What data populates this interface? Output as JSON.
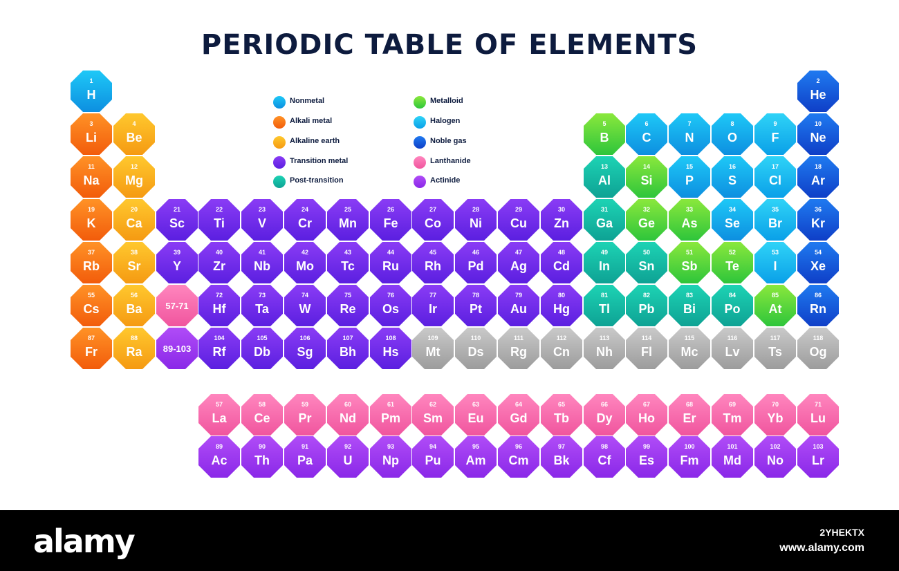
{
  "title": "PERIODIC TABLE OF ELEMENTS",
  "categories": {
    "nonmetal": {
      "label": "Nonmetal",
      "from": "#1ec8f7",
      "to": "#0d8fe0"
    },
    "alkali": {
      "label": "Alkali metal",
      "from": "#ff9226",
      "to": "#f25c0b"
    },
    "alkaline": {
      "label": "Alkaline earth",
      "from": "#ffc82e",
      "to": "#f59a12"
    },
    "transition": {
      "label": "Transition metal",
      "from": "#8a3cf5",
      "to": "#5b1fe0"
    },
    "post": {
      "label": "Post-transition",
      "from": "#1dd3b4",
      "to": "#0ea294"
    },
    "metalloid": {
      "label": "Metalloid",
      "from": "#8ae83c",
      "to": "#2ec53b"
    },
    "halogen": {
      "label": "Halogen",
      "from": "#2fd3f7",
      "to": "#0aa0e8"
    },
    "noble": {
      "label": "Noble gas",
      "from": "#1f7af0",
      "to": "#0f3fc7"
    },
    "lanthanide": {
      "label": "Lanthanide",
      "from": "#ff86be",
      "to": "#f0559e"
    },
    "actinide": {
      "label": "Actinide",
      "from": "#b04cf7",
      "to": "#8a28e8"
    },
    "unknown": {
      "label": "",
      "from": "#c9c9c9",
      "to": "#9c9c9c"
    }
  },
  "legend": {
    "col1": [
      "nonmetal",
      "alkali",
      "alkaline",
      "transition",
      "post"
    ],
    "col2": [
      "metalloid",
      "halogen",
      "noble",
      "lanthanide",
      "actinide"
    ]
  },
  "elements": [
    {
      "n": "1",
      "s": "H",
      "row": 1,
      "col": 1,
      "c": "nonmetal"
    },
    {
      "n": "2",
      "s": "He",
      "row": 1,
      "col": 18,
      "c": "noble"
    },
    {
      "n": "3",
      "s": "Li",
      "row": 2,
      "col": 1,
      "c": "alkali"
    },
    {
      "n": "4",
      "s": "Be",
      "row": 2,
      "col": 2,
      "c": "alkaline"
    },
    {
      "n": "5",
      "s": "B",
      "row": 2,
      "col": 13,
      "c": "metalloid"
    },
    {
      "n": "6",
      "s": "C",
      "row": 2,
      "col": 14,
      "c": "nonmetal"
    },
    {
      "n": "7",
      "s": "N",
      "row": 2,
      "col": 15,
      "c": "nonmetal"
    },
    {
      "n": "8",
      "s": "O",
      "row": 2,
      "col": 16,
      "c": "nonmetal"
    },
    {
      "n": "9",
      "s": "F",
      "row": 2,
      "col": 17,
      "c": "halogen"
    },
    {
      "n": "10",
      "s": "Ne",
      "row": 2,
      "col": 18,
      "c": "noble"
    },
    {
      "n": "11",
      "s": "Na",
      "row": 3,
      "col": 1,
      "c": "alkali"
    },
    {
      "n": "12",
      "s": "Mg",
      "row": 3,
      "col": 2,
      "c": "alkaline"
    },
    {
      "n": "13",
      "s": "Al",
      "row": 3,
      "col": 13,
      "c": "post"
    },
    {
      "n": "14",
      "s": "Si",
      "row": 3,
      "col": 14,
      "c": "metalloid"
    },
    {
      "n": "15",
      "s": "P",
      "row": 3,
      "col": 15,
      "c": "nonmetal"
    },
    {
      "n": "16",
      "s": "S",
      "row": 3,
      "col": 16,
      "c": "nonmetal"
    },
    {
      "n": "17",
      "s": "Cl",
      "row": 3,
      "col": 17,
      "c": "halogen"
    },
    {
      "n": "18",
      "s": "Ar",
      "row": 3,
      "col": 18,
      "c": "noble"
    },
    {
      "n": "19",
      "s": "K",
      "row": 4,
      "col": 1,
      "c": "alkali"
    },
    {
      "n": "20",
      "s": "Ca",
      "row": 4,
      "col": 2,
      "c": "alkaline"
    },
    {
      "n": "21",
      "s": "Sc",
      "row": 4,
      "col": 3,
      "c": "transition"
    },
    {
      "n": "22",
      "s": "Ti",
      "row": 4,
      "col": 4,
      "c": "transition"
    },
    {
      "n": "23",
      "s": "V",
      "row": 4,
      "col": 5,
      "c": "transition"
    },
    {
      "n": "24",
      "s": "Cr",
      "row": 4,
      "col": 6,
      "c": "transition"
    },
    {
      "n": "25",
      "s": "Mn",
      "row": 4,
      "col": 7,
      "c": "transition"
    },
    {
      "n": "26",
      "s": "Fe",
      "row": 4,
      "col": 8,
      "c": "transition"
    },
    {
      "n": "27",
      "s": "Co",
      "row": 4,
      "col": 9,
      "c": "transition"
    },
    {
      "n": "28",
      "s": "Ni",
      "row": 4,
      "col": 10,
      "c": "transition"
    },
    {
      "n": "29",
      "s": "Cu",
      "row": 4,
      "col": 11,
      "c": "transition"
    },
    {
      "n": "30",
      "s": "Zn",
      "row": 4,
      "col": 12,
      "c": "transition"
    },
    {
      "n": "31",
      "s": "Ga",
      "row": 4,
      "col": 13,
      "c": "post"
    },
    {
      "n": "32",
      "s": "Ge",
      "row": 4,
      "col": 14,
      "c": "metalloid"
    },
    {
      "n": "33",
      "s": "As",
      "row": 4,
      "col": 15,
      "c": "metalloid"
    },
    {
      "n": "34",
      "s": "Se",
      "row": 4,
      "col": 16,
      "c": "nonmetal"
    },
    {
      "n": "35",
      "s": "Br",
      "row": 4,
      "col": 17,
      "c": "halogen"
    },
    {
      "n": "36",
      "s": "Kr",
      "row": 4,
      "col": 18,
      "c": "noble"
    },
    {
      "n": "37",
      "s": "Rb",
      "row": 5,
      "col": 1,
      "c": "alkali"
    },
    {
      "n": "38",
      "s": "Sr",
      "row": 5,
      "col": 2,
      "c": "alkaline"
    },
    {
      "n": "39",
      "s": "Y",
      "row": 5,
      "col": 3,
      "c": "transition"
    },
    {
      "n": "40",
      "s": "Zr",
      "row": 5,
      "col": 4,
      "c": "transition"
    },
    {
      "n": "41",
      "s": "Nb",
      "row": 5,
      "col": 5,
      "c": "transition"
    },
    {
      "n": "42",
      "s": "Mo",
      "row": 5,
      "col": 6,
      "c": "transition"
    },
    {
      "n": "43",
      "s": "Tc",
      "row": 5,
      "col": 7,
      "c": "transition"
    },
    {
      "n": "44",
      "s": "Ru",
      "row": 5,
      "col": 8,
      "c": "transition"
    },
    {
      "n": "45",
      "s": "Rh",
      "row": 5,
      "col": 9,
      "c": "transition"
    },
    {
      "n": "46",
      "s": "Pd",
      "row": 5,
      "col": 10,
      "c": "transition"
    },
    {
      "n": "47",
      "s": "Ag",
      "row": 5,
      "col": 11,
      "c": "transition"
    },
    {
      "n": "48",
      "s": "Cd",
      "row": 5,
      "col": 12,
      "c": "transition"
    },
    {
      "n": "49",
      "s": "In",
      "row": 5,
      "col": 13,
      "c": "post"
    },
    {
      "n": "50",
      "s": "Sn",
      "row": 5,
      "col": 14,
      "c": "post"
    },
    {
      "n": "51",
      "s": "Sb",
      "row": 5,
      "col": 15,
      "c": "metalloid"
    },
    {
      "n": "52",
      "s": "Te",
      "row": 5,
      "col": 16,
      "c": "metalloid"
    },
    {
      "n": "53",
      "s": "I",
      "row": 5,
      "col": 17,
      "c": "halogen"
    },
    {
      "n": "54",
      "s": "Xe",
      "row": 5,
      "col": 18,
      "c": "noble"
    },
    {
      "n": "55",
      "s": "Cs",
      "row": 6,
      "col": 1,
      "c": "alkali"
    },
    {
      "n": "56",
      "s": "Ba",
      "row": 6,
      "col": 2,
      "c": "alkaline"
    },
    {
      "n": "",
      "s": "57-71",
      "row": 6,
      "col": 3,
      "c": "lanthanide",
      "range": true
    },
    {
      "n": "72",
      "s": "Hf",
      "row": 6,
      "col": 4,
      "c": "transition"
    },
    {
      "n": "73",
      "s": "Ta",
      "row": 6,
      "col": 5,
      "c": "transition"
    },
    {
      "n": "74",
      "s": "W",
      "row": 6,
      "col": 6,
      "c": "transition"
    },
    {
      "n": "75",
      "s": "Re",
      "row": 6,
      "col": 7,
      "c": "transition"
    },
    {
      "n": "76",
      "s": "Os",
      "row": 6,
      "col": 8,
      "c": "transition"
    },
    {
      "n": "77",
      "s": "Ir",
      "row": 6,
      "col": 9,
      "c": "transition"
    },
    {
      "n": "78",
      "s": "Pt",
      "row": 6,
      "col": 10,
      "c": "transition"
    },
    {
      "n": "79",
      "s": "Au",
      "row": 6,
      "col": 11,
      "c": "transition"
    },
    {
      "n": "80",
      "s": "Hg",
      "row": 6,
      "col": 12,
      "c": "transition"
    },
    {
      "n": "81",
      "s": "Tl",
      "row": 6,
      "col": 13,
      "c": "post"
    },
    {
      "n": "82",
      "s": "Pb",
      "row": 6,
      "col": 14,
      "c": "post"
    },
    {
      "n": "83",
      "s": "Bi",
      "row": 6,
      "col": 15,
      "c": "post"
    },
    {
      "n": "84",
      "s": "Po",
      "row": 6,
      "col": 16,
      "c": "post"
    },
    {
      "n": "85",
      "s": "At",
      "row": 6,
      "col": 17,
      "c": "metalloid"
    },
    {
      "n": "86",
      "s": "Rn",
      "row": 6,
      "col": 18,
      "c": "noble"
    },
    {
      "n": "87",
      "s": "Fr",
      "row": 7,
      "col": 1,
      "c": "alkali"
    },
    {
      "n": "88",
      "s": "Ra",
      "row": 7,
      "col": 2,
      "c": "alkaline"
    },
    {
      "n": "",
      "s": "89-103",
      "row": 7,
      "col": 3,
      "c": "actinide",
      "range": true
    },
    {
      "n": "104",
      "s": "Rf",
      "row": 7,
      "col": 4,
      "c": "transition"
    },
    {
      "n": "105",
      "s": "Db",
      "row": 7,
      "col": 5,
      "c": "transition"
    },
    {
      "n": "106",
      "s": "Sg",
      "row": 7,
      "col": 6,
      "c": "transition"
    },
    {
      "n": "107",
      "s": "Bh",
      "row": 7,
      "col": 7,
      "c": "transition"
    },
    {
      "n": "108",
      "s": "Hs",
      "row": 7,
      "col": 8,
      "c": "transition"
    },
    {
      "n": "109",
      "s": "Mt",
      "row": 7,
      "col": 9,
      "c": "unknown"
    },
    {
      "n": "110",
      "s": "Ds",
      "row": 7,
      "col": 10,
      "c": "unknown"
    },
    {
      "n": "111",
      "s": "Rg",
      "row": 7,
      "col": 11,
      "c": "unknown"
    },
    {
      "n": "112",
      "s": "Cn",
      "row": 7,
      "col": 12,
      "c": "unknown"
    },
    {
      "n": "113",
      "s": "Nh",
      "row": 7,
      "col": 13,
      "c": "unknown"
    },
    {
      "n": "114",
      "s": "Fl",
      "row": 7,
      "col": 14,
      "c": "unknown"
    },
    {
      "n": "115",
      "s": "Mc",
      "row": 7,
      "col": 15,
      "c": "unknown"
    },
    {
      "n": "116",
      "s": "Lv",
      "row": 7,
      "col": 16,
      "c": "unknown"
    },
    {
      "n": "117",
      "s": "Ts",
      "row": 7,
      "col": 17,
      "c": "unknown"
    },
    {
      "n": "118",
      "s": "Og",
      "row": 7,
      "col": 18,
      "c": "unknown"
    },
    {
      "n": "57",
      "s": "La",
      "row": 8,
      "col": 4,
      "c": "lanthanide"
    },
    {
      "n": "58",
      "s": "Ce",
      "row": 8,
      "col": 5,
      "c": "lanthanide"
    },
    {
      "n": "59",
      "s": "Pr",
      "row": 8,
      "col": 6,
      "c": "lanthanide"
    },
    {
      "n": "60",
      "s": "Nd",
      "row": 8,
      "col": 7,
      "c": "lanthanide"
    },
    {
      "n": "61",
      "s": "Pm",
      "row": 8,
      "col": 8,
      "c": "lanthanide"
    },
    {
      "n": "62",
      "s": "Sm",
      "row": 8,
      "col": 9,
      "c": "lanthanide"
    },
    {
      "n": "63",
      "s": "Eu",
      "row": 8,
      "col": 10,
      "c": "lanthanide"
    },
    {
      "n": "64",
      "s": "Gd",
      "row": 8,
      "col": 11,
      "c": "lanthanide"
    },
    {
      "n": "65",
      "s": "Tb",
      "row": 8,
      "col": 12,
      "c": "lanthanide"
    },
    {
      "n": "66",
      "s": "Dy",
      "row": 8,
      "col": 13,
      "c": "lanthanide"
    },
    {
      "n": "67",
      "s": "Ho",
      "row": 8,
      "col": 14,
      "c": "lanthanide"
    },
    {
      "n": "68",
      "s": "Er",
      "row": 8,
      "col": 15,
      "c": "lanthanide"
    },
    {
      "n": "69",
      "s": "Tm",
      "row": 8,
      "col": 16,
      "c": "lanthanide"
    },
    {
      "n": "70",
      "s": "Yb",
      "row": 8,
      "col": 17,
      "c": "lanthanide"
    },
    {
      "n": "71",
      "s": "Lu",
      "row": 8,
      "col": 18,
      "c": "lanthanide"
    },
    {
      "n": "89",
      "s": "Ac",
      "row": 9,
      "col": 4,
      "c": "actinide"
    },
    {
      "n": "90",
      "s": "Th",
      "row": 9,
      "col": 5,
      "c": "actinide"
    },
    {
      "n": "91",
      "s": "Pa",
      "row": 9,
      "col": 6,
      "c": "actinide"
    },
    {
      "n": "92",
      "s": "U",
      "row": 9,
      "col": 7,
      "c": "actinide"
    },
    {
      "n": "93",
      "s": "Np",
      "row": 9,
      "col": 8,
      "c": "actinide"
    },
    {
      "n": "94",
      "s": "Pu",
      "row": 9,
      "col": 9,
      "c": "actinide"
    },
    {
      "n": "95",
      "s": "Am",
      "row": 9,
      "col": 10,
      "c": "actinide"
    },
    {
      "n": "96",
      "s": "Cm",
      "row": 9,
      "col": 11,
      "c": "actinide"
    },
    {
      "n": "97",
      "s": "Bk",
      "row": 9,
      "col": 12,
      "c": "actinide"
    },
    {
      "n": "98",
      "s": "Cf",
      "row": 9,
      "col": 13,
      "c": "actinide"
    },
    {
      "n": "99",
      "s": "Es",
      "row": 9,
      "col": 14,
      "c": "actinide"
    },
    {
      "n": "100",
      "s": "Fm",
      "row": 9,
      "col": 15,
      "c": "actinide"
    },
    {
      "n": "101",
      "s": "Md",
      "row": 9,
      "col": 16,
      "c": "actinide"
    },
    {
      "n": "102",
      "s": "No",
      "row": 9,
      "col": 17,
      "c": "actinide"
    },
    {
      "n": "103",
      "s": "Lr",
      "row": 9,
      "col": 18,
      "c": "actinide"
    }
  ],
  "footer": {
    "logo": "alamy",
    "image_id": "2YHEKTX",
    "site": "www.alamy.com"
  }
}
